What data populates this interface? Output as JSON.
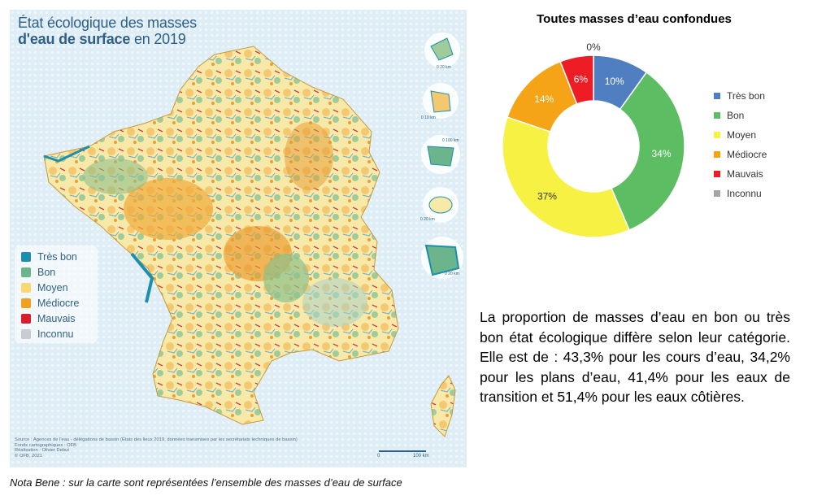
{
  "map": {
    "title_line1": "État écologique des masses",
    "title_line2_bold": "d'eau de surface",
    "title_line2_rest": " en 2019",
    "legend": [
      {
        "label": "Très bon",
        "color": "#1d8fae"
      },
      {
        "label": "Bon",
        "color": "#6bb48c"
      },
      {
        "label": "Moyen",
        "color": "#f7d873"
      },
      {
        "label": "Médiocre",
        "color": "#f0a020"
      },
      {
        "label": "Mauvais",
        "color": "#d81e2a"
      },
      {
        "label": "Inconnu",
        "color": "#c9cdd3"
      }
    ],
    "credits_line1": "Source : Agences de l'eau - délégations de bassin (États des lieux 2019, données transmises par les secrétariats techniques de bassin)",
    "credits_line2": "Fonds cartographiques : OFB",
    "credits_line3": "Réalisation : Olivier Debut",
    "credits_line4": "© OFB, 2021",
    "scale_zero": "0",
    "scale_label": "100 km",
    "inset_scales": [
      "0   20 km",
      "0   10 km",
      "0   100 km",
      "0   20 km",
      "0   20 km"
    ]
  },
  "chart_data": {
    "type": "pie",
    "title": "Toutes masses d’eau confondues",
    "categories": [
      "Très bon",
      "Bon",
      "Moyen",
      "Médiocre",
      "Mauvais",
      "Inconnu"
    ],
    "values": [
      10,
      34,
      37,
      14,
      6,
      0
    ],
    "labels": [
      "10%",
      "34%",
      "37%",
      "14%",
      "6%",
      "0%"
    ],
    "colors": [
      "#4f7fc0",
      "#5cbd62",
      "#f6f143",
      "#f6a417",
      "#ee1c25",
      "#a6a6a6"
    ],
    "label_colors": [
      "#ffffff",
      "#ffffff",
      "#333333",
      "#ffffff",
      "#ffffff",
      "#333333"
    ],
    "donut": true,
    "legend_position": "right"
  },
  "paragraph": "La proportion de masses d’eau en bon ou très bon état écologique diffère selon leur catégorie. Elle est de : 43,3% pour les cours d’eau, 34,2% pour les plans d’eau, 41,4% pour les eaux de transition et 51,4% pour les eaux côtières.",
  "nota": "Nota Bene : sur la carte sont représentées l’ensemble des masses d’eau de surface"
}
